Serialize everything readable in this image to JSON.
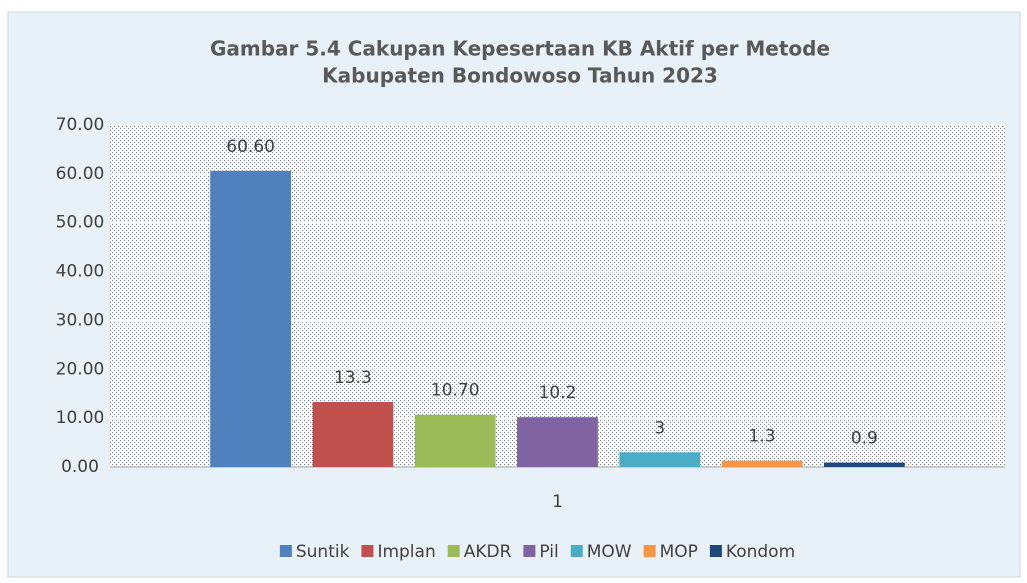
{
  "chart_data": {
    "type": "bar",
    "title": [
      "Gambar 5.4 Cakupan Kepesertaan KB Aktif per Metode",
      "Kabupaten Bondowoso Tahun 2023"
    ],
    "categories": [
      "1"
    ],
    "series": [
      {
        "name": "Suntik",
        "color": "#4f81bd",
        "values": [
          60.6
        ],
        "value_labels": [
          "60.60"
        ]
      },
      {
        "name": "Implan",
        "color": "#c0504d",
        "values": [
          13.3
        ],
        "value_labels": [
          "13.3"
        ]
      },
      {
        "name": "AKDR",
        "color": "#9bbb59",
        "values": [
          10.7
        ],
        "value_labels": [
          "10.70"
        ]
      },
      {
        "name": "Pil",
        "color": "#8064a2",
        "values": [
          10.2
        ],
        "value_labels": [
          "10.2"
        ]
      },
      {
        "name": "MOW",
        "color": "#4bacc6",
        "values": [
          3
        ],
        "value_labels": [
          "3"
        ]
      },
      {
        "name": "MOP",
        "color": "#f79646",
        "values": [
          1.3
        ],
        "value_labels": [
          "1.3"
        ]
      },
      {
        "name": "Kondom",
        "color": "#1f497d",
        "values": [
          0.9
        ],
        "value_labels": [
          "0.9"
        ]
      }
    ],
    "ylim": [
      0,
      70
    ],
    "yticks": [
      {
        "value": 0,
        "label": "0.00"
      },
      {
        "value": 10,
        "label": "10.00"
      },
      {
        "value": 20,
        "label": "20.00"
      },
      {
        "value": 30,
        "label": "30.00"
      },
      {
        "value": 40,
        "label": "40.00"
      },
      {
        "value": 50,
        "label": "50.00"
      },
      {
        "value": 60,
        "label": "60.00"
      },
      {
        "value": 70,
        "label": "70.00"
      }
    ],
    "grid": true,
    "legend": "bottom"
  }
}
